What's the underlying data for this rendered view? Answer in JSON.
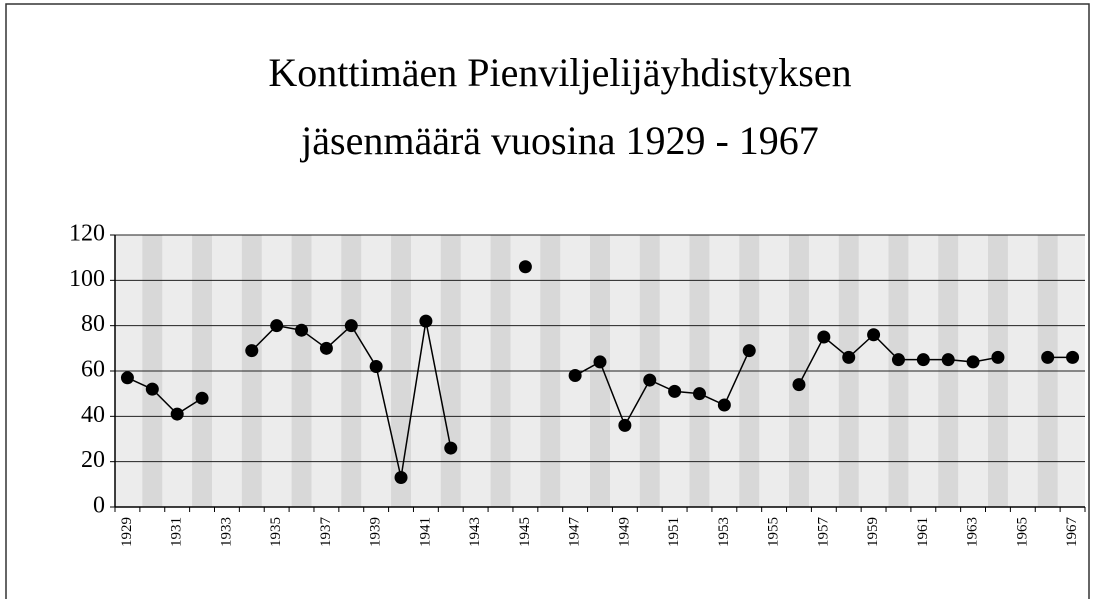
{
  "chart_data": {
    "type": "line",
    "title": [
      "Konttimäen Pienviljelijäyhdistyksen",
      "jäsenmäärä vuosina 1929 - 1967"
    ],
    "categories": [
      "1929",
      null,
      "1931",
      null,
      "1933",
      null,
      "1935",
      null,
      "1937",
      null,
      "1939",
      null,
      "1941",
      null,
      "1943",
      null,
      "1945",
      null,
      "1947",
      null,
      "1949",
      null,
      "1951",
      null,
      "1953",
      null,
      "1955",
      null,
      "1957",
      null,
      "1959",
      null,
      "1961",
      null,
      "1963",
      null,
      "1965",
      null,
      "1967"
    ],
    "series": [
      {
        "color": "#000000",
        "values": [
          57,
          52,
          41,
          48,
          null,
          69,
          80,
          78,
          70,
          80,
          62,
          13,
          82,
          26,
          null,
          null,
          106,
          null,
          58,
          64,
          36,
          56,
          51,
          50,
          45,
          69,
          null,
          54,
          75,
          66,
          76,
          65,
          65,
          65,
          64,
          66,
          null,
          66,
          66
        ]
      }
    ],
    "ylim": [
      0,
      120
    ],
    "yticks": [
      0,
      20,
      40,
      60,
      80,
      100,
      120
    ],
    "grid": true
  }
}
